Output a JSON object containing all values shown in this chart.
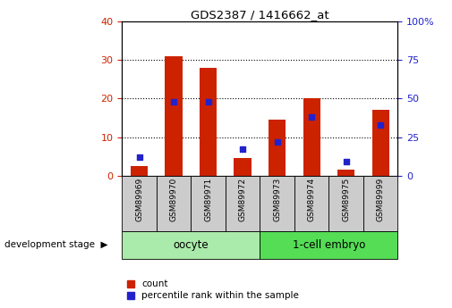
{
  "title": "GDS2387 / 1416662_at",
  "samples": [
    "GSM89969",
    "GSM89970",
    "GSM89971",
    "GSM89972",
    "GSM89973",
    "GSM89974",
    "GSM89975",
    "GSM89999"
  ],
  "count_values": [
    2.5,
    31.0,
    28.0,
    4.5,
    14.5,
    20.0,
    1.5,
    17.0
  ],
  "percentile_values": [
    12.0,
    48.0,
    48.0,
    17.0,
    22.0,
    38.0,
    9.0,
    33.0
  ],
  "left_ylim": [
    0,
    40
  ],
  "right_ylim": [
    0,
    100
  ],
  "left_yticks": [
    0,
    10,
    20,
    30,
    40
  ],
  "right_yticks": [
    0,
    25,
    50,
    75,
    100
  ],
  "right_yticklabels": [
    "0",
    "25",
    "50",
    "75",
    "100%"
  ],
  "bar_color": "#cc2200",
  "dot_color": "#2222cc",
  "grid_color": "#000000",
  "bg_color": "#ffffff",
  "plot_bg_color": "#ffffff",
  "tick_label_color_left": "#cc2200",
  "tick_label_color_right": "#2222cc",
  "groups": [
    {
      "label": "oocyte",
      "indices": [
        0,
        1,
        2,
        3
      ],
      "color": "#aaeaaa"
    },
    {
      "label": "1-cell embryo",
      "indices": [
        4,
        5,
        6,
        7
      ],
      "color": "#55dd55"
    }
  ],
  "legend_items": [
    {
      "label": "count",
      "color": "#cc2200"
    },
    {
      "label": "percentile rank within the sample",
      "color": "#2222cc"
    }
  ],
  "development_stage_label": "development stage",
  "bar_width": 0.5
}
